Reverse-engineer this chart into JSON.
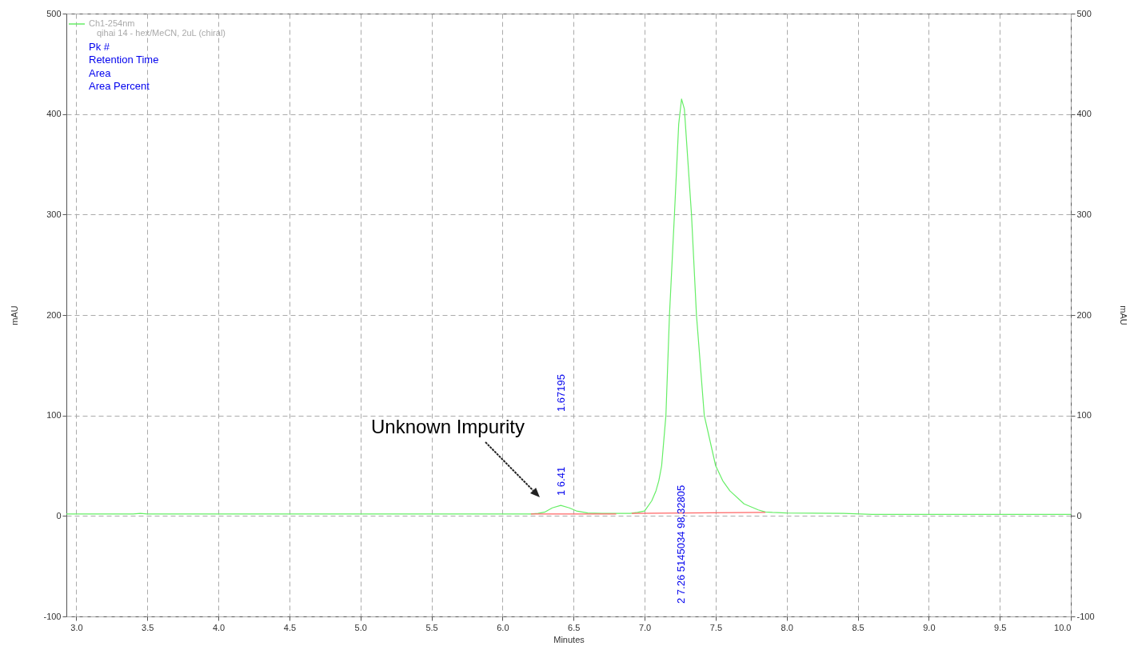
{
  "chart_data": {
    "type": "line",
    "xlabel": "Minutes",
    "ylabel": "mAU",
    "y2label": "mAU",
    "xlim": [
      2.93,
      10.0
    ],
    "xticks": [
      {
        "value": 3,
        "label": "3.0"
      },
      {
        "value": 3.5,
        "label": "3.5"
      },
      {
        "value": 4,
        "label": "4.0"
      },
      {
        "value": 4.5,
        "label": "4.5"
      },
      {
        "value": 5,
        "label": "5.0"
      },
      {
        "value": 5.5,
        "label": "5.5"
      },
      {
        "value": 6,
        "label": "6.0"
      },
      {
        "value": 6.5,
        "label": "6.5"
      },
      {
        "value": 7,
        "label": "7.0"
      },
      {
        "value": 7.5,
        "label": "7.5"
      },
      {
        "value": 8,
        "label": "8.0"
      },
      {
        "value": 8.5,
        "label": "8.5"
      },
      {
        "value": 9,
        "label": "9.0"
      },
      {
        "value": 9.5,
        "label": "9.5"
      },
      {
        "value": 10,
        "label": "10.0"
      }
    ],
    "ylim": [
      -100,
      500
    ],
    "yticks": [
      -100,
      0,
      100,
      200,
      300,
      400,
      500
    ],
    "y2lim": [
      -100,
      500
    ],
    "y2ticks": [
      -100,
      0,
      100,
      200,
      300,
      400,
      500
    ],
    "grid": true,
    "legend": "top left",
    "series": [
      {
        "name": "Ch1-254nm",
        "color": "#66ee66",
        "x": [
          2.93,
          3.4,
          3.45,
          3.5,
          4.5,
          5.5,
          6.2,
          6.25,
          6.3,
          6.35,
          6.41,
          6.47,
          6.52,
          6.6,
          6.7,
          6.8,
          6.9,
          6.95,
          7.0,
          7.05,
          7.08,
          7.1,
          7.12,
          7.15,
          7.175,
          7.21,
          7.24,
          7.26,
          7.28,
          7.33,
          7.365,
          7.42,
          7.5,
          7.55,
          7.6,
          7.7,
          7.8,
          7.85,
          7.9,
          8.0,
          8.4,
          8.6,
          9.0,
          10.0
        ],
        "values": [
          2,
          2,
          2.5,
          2,
          2,
          2,
          2,
          2.5,
          4,
          8,
          10.5,
          8,
          5,
          3,
          2.5,
          2.5,
          2.5,
          3.5,
          5,
          15,
          25,
          35,
          50,
          100,
          200,
          300,
          390,
          415,
          405,
          300,
          200,
          100,
          50,
          35,
          25,
          12,
          6,
          4,
          3.5,
          3,
          2.5,
          1.5,
          1.5,
          1.5
        ]
      },
      {
        "color": "#ff6666",
        "x": [
          6.2,
          6.8,
          6.85,
          6.91,
          7.85
        ],
        "values": [
          2,
          2,
          null,
          2.5,
          3.5
        ]
      }
    ],
    "annotations": [
      "qihai 14 - hex/MeCN, 2uL (chiral)",
      "Pk #",
      "Retention Time",
      "Area",
      "Area Percent",
      "Unknown Impurity",
      "1 6.41",
      "1.67195",
      "2 7.26 5145034 98.32805"
    ]
  }
}
